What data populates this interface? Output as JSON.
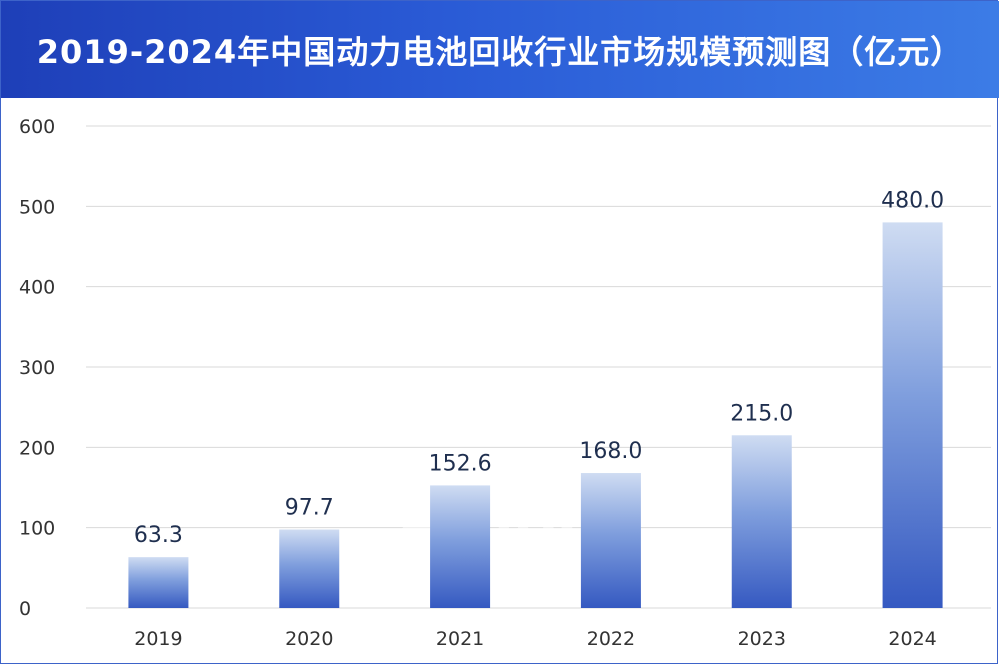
{
  "header": {
    "title": "2019-2024年中国动力电池回收行业市场规模预测图（亿元）"
  },
  "watermark": "Ainuo",
  "colors": {
    "header_start": "#1e3fb8",
    "header_end": "#3c7ce6",
    "bar_top": "#cfdcf2",
    "bar_bottom": "#3559c1",
    "gridline": "#d9d9d9"
  },
  "chart_data": {
    "type": "bar",
    "categories": [
      "2019",
      "2020",
      "2021",
      "2022",
      "2023",
      "2024"
    ],
    "values": [
      63.3,
      97.7,
      152.6,
      168.0,
      215.0,
      480.0
    ],
    "value_labels": [
      "63.3",
      "97.7",
      "152.6",
      "168.0",
      "215.0",
      "480.0"
    ],
    "title": "2019-2024年中国动力电池回收行业市场规模预测图（亿元）",
    "xlabel": "",
    "ylabel": "",
    "ylim": [
      0,
      600
    ],
    "yticks": [
      0,
      100,
      200,
      300,
      400,
      500,
      600
    ],
    "grid": true,
    "legend": "none"
  }
}
